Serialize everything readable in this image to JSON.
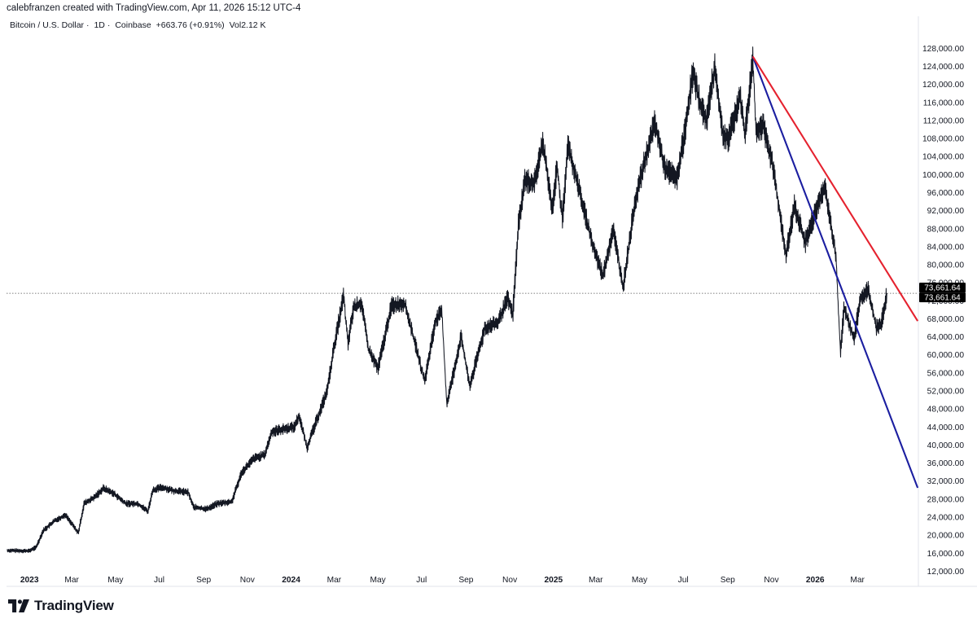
{
  "attribution": "calebfranzen created with TradingView.com, Apr 11, 2026 15:12 UTC-4",
  "symbol_line": {
    "name": "Bitcoin / U.S. Dollar",
    "interval": "1D",
    "exchange": "Coinbase",
    "change": "+663.76 (+0.91%)",
    "volume_label": "Vol",
    "volume": "2.12 K"
  },
  "brand": {
    "name": "TradingView",
    "logo_icon": "tradingview-logo-icon"
  },
  "colors": {
    "candles": "#131722",
    "blue_trendline": "#1b1ea0",
    "red_trendline": "#e5222f",
    "price_tag_bg": "#000000",
    "axis_text": "#131722"
  },
  "chart_data": {
    "type": "line",
    "series_style": "candlestick-like daily price, drawn as dense black line",
    "x_axis": {
      "range": [
        "2022-11-30",
        "2026-05-25"
      ],
      "ticks": [
        {
          "label": "2023",
          "date": "2023-01-01",
          "bold": true
        },
        {
          "label": "Mar",
          "date": "2023-03-01"
        },
        {
          "label": "May",
          "date": "2023-05-01"
        },
        {
          "label": "Jul",
          "date": "2023-07-01"
        },
        {
          "label": "Sep",
          "date": "2023-09-01"
        },
        {
          "label": "Nov",
          "date": "2023-11-01"
        },
        {
          "label": "2024",
          "date": "2024-01-01",
          "bold": true
        },
        {
          "label": "Mar",
          "date": "2024-03-01"
        },
        {
          "label": "May",
          "date": "2024-05-01"
        },
        {
          "label": "Jul",
          "date": "2024-07-01"
        },
        {
          "label": "Sep",
          "date": "2024-09-01"
        },
        {
          "label": "Nov",
          "date": "2024-11-01"
        },
        {
          "label": "2025",
          "date": "2025-01-01",
          "bold": true
        },
        {
          "label": "Mar",
          "date": "2025-03-01"
        },
        {
          "label": "May",
          "date": "2025-05-01"
        },
        {
          "label": "Jul",
          "date": "2025-07-01"
        },
        {
          "label": "Sep",
          "date": "2025-09-01"
        },
        {
          "label": "Nov",
          "date": "2025-11-01"
        },
        {
          "label": "2026",
          "date": "2026-01-01",
          "bold": true
        },
        {
          "label": "Mar",
          "date": "2026-03-01"
        }
      ]
    },
    "y_axis": {
      "range": [
        9000,
        131500
      ],
      "ticks": [
        "12,000.00",
        "16,000.00",
        "20,000.00",
        "24,000.00",
        "28,000.00",
        "32,000.00",
        "36,000.00",
        "40,000.00",
        "44,000.00",
        "48,000.00",
        "52,000.00",
        "56,000.00",
        "60,000.00",
        "64,000.00",
        "68,000.00",
        "72,000.00",
        "76,000.00",
        "80,000.00",
        "84,000.00",
        "88,000.00",
        "92,000.00",
        "96,000.00",
        "100,000.00",
        "104,000.00",
        "108,000.00",
        "112,000.00",
        "116,000.00",
        "120,000.00",
        "124,000.00",
        "128,000.00"
      ],
      "tick_values": [
        12000,
        16000,
        20000,
        24000,
        28000,
        32000,
        36000,
        40000,
        44000,
        48000,
        52000,
        56000,
        60000,
        64000,
        68000,
        72000,
        76000,
        80000,
        84000,
        88000,
        92000,
        96000,
        100000,
        104000,
        108000,
        112000,
        116000,
        120000,
        124000,
        128000
      ]
    },
    "series": [
      {
        "points": [
          [
            "2022-12-01",
            16600
          ],
          [
            "2022-12-31",
            16500
          ],
          [
            "2023-01-10",
            17300
          ],
          [
            "2023-01-20",
            21000
          ],
          [
            "2023-02-05",
            23200
          ],
          [
            "2023-02-20",
            24500
          ],
          [
            "2023-03-10",
            20500
          ],
          [
            "2023-03-18",
            27000
          ],
          [
            "2023-04-01",
            28300
          ],
          [
            "2023-04-14",
            30400
          ],
          [
            "2023-04-28",
            29300
          ],
          [
            "2023-05-15",
            27000
          ],
          [
            "2023-06-01",
            27000
          ],
          [
            "2023-06-15",
            25300
          ],
          [
            "2023-06-22",
            30000
          ],
          [
            "2023-07-05",
            30600
          ],
          [
            "2023-07-20",
            29900
          ],
          [
            "2023-08-10",
            29500
          ],
          [
            "2023-08-18",
            26200
          ],
          [
            "2023-09-05",
            25800
          ],
          [
            "2023-09-20",
            27000
          ],
          [
            "2023-10-10",
            27400
          ],
          [
            "2023-10-24",
            34000
          ],
          [
            "2023-11-10",
            37000
          ],
          [
            "2023-11-25",
            37800
          ],
          [
            "2023-12-05",
            43000
          ],
          [
            "2023-12-20",
            43500
          ],
          [
            "2024-01-05",
            44000
          ],
          [
            "2024-01-12",
            46500
          ],
          [
            "2024-01-23",
            39500
          ],
          [
            "2024-02-10",
            47500
          ],
          [
            "2024-02-20",
            52000
          ],
          [
            "2024-03-01",
            62000
          ],
          [
            "2024-03-14",
            73100
          ],
          [
            "2024-03-20",
            62500
          ],
          [
            "2024-03-28",
            70500
          ],
          [
            "2024-04-08",
            71500
          ],
          [
            "2024-04-18",
            61000
          ],
          [
            "2024-05-01",
            57000
          ],
          [
            "2024-05-20",
            71000
          ],
          [
            "2024-06-07",
            71500
          ],
          [
            "2024-06-25",
            60500
          ],
          [
            "2024-07-05",
            54000
          ],
          [
            "2024-07-20",
            67500
          ],
          [
            "2024-07-29",
            69500
          ],
          [
            "2024-08-05",
            49000
          ],
          [
            "2024-08-25",
            64000
          ],
          [
            "2024-09-06",
            53000
          ],
          [
            "2024-09-27",
            66000
          ],
          [
            "2024-10-15",
            67000
          ],
          [
            "2024-10-29",
            72500
          ],
          [
            "2024-11-05",
            69000
          ],
          [
            "2024-11-13",
            89000
          ],
          [
            "2024-11-22",
            98800
          ],
          [
            "2024-12-05",
            98000
          ],
          [
            "2024-12-17",
            107000
          ],
          [
            "2024-12-30",
            92500
          ],
          [
            "2025-01-06",
            102000
          ],
          [
            "2025-01-13",
            90000
          ],
          [
            "2025-01-21",
            106500
          ],
          [
            "2025-02-05",
            97000
          ],
          [
            "2025-02-25",
            84000
          ],
          [
            "2025-03-11",
            77500
          ],
          [
            "2025-03-25",
            88000
          ],
          [
            "2025-04-08",
            75000
          ],
          [
            "2025-04-25",
            94500
          ],
          [
            "2025-05-10",
            104000
          ],
          [
            "2025-05-22",
            111500
          ],
          [
            "2025-06-05",
            101500
          ],
          [
            "2025-06-22",
            99000
          ],
          [
            "2025-07-03",
            109500
          ],
          [
            "2025-07-14",
            122500
          ],
          [
            "2025-07-25",
            115500
          ],
          [
            "2025-08-02",
            112000
          ],
          [
            "2025-08-14",
            124000
          ],
          [
            "2025-08-25",
            109000
          ],
          [
            "2025-09-02",
            108000
          ],
          [
            "2025-09-18",
            117500
          ],
          [
            "2025-09-25",
            109000
          ],
          [
            "2025-10-06",
            126000
          ],
          [
            "2025-10-10",
            110000
          ],
          [
            "2025-10-20",
            111000
          ],
          [
            "2025-11-04",
            101000
          ],
          [
            "2025-11-21",
            82000
          ],
          [
            "2025-12-03",
            93000
          ],
          [
            "2025-12-18",
            85000
          ],
          [
            "2026-01-05",
            93500
          ],
          [
            "2026-01-14",
            97500
          ],
          [
            "2026-01-30",
            82000
          ],
          [
            "2026-02-05",
            60200
          ],
          [
            "2026-02-10",
            70500
          ],
          [
            "2026-02-24",
            63500
          ],
          [
            "2026-03-05",
            72500
          ],
          [
            "2026-03-16",
            74500
          ],
          [
            "2026-03-27",
            66000
          ],
          [
            "2026-04-03",
            67000
          ],
          [
            "2026-04-11",
            73661.64
          ]
        ]
      }
    ],
    "trendlines": [
      {
        "color_key": "blue_trendline",
        "from": [
          "2025-10-06",
          126200
        ],
        "to": [
          "2026-05-24",
          30500
        ]
      },
      {
        "color_key": "red_trendline",
        "from": [
          "2025-10-06",
          126200
        ],
        "to": [
          "2026-05-24",
          67500
        ]
      }
    ],
    "last_price": {
      "value": 73661.64,
      "label": "73,661.64"
    },
    "grid": false,
    "legend": "none"
  }
}
